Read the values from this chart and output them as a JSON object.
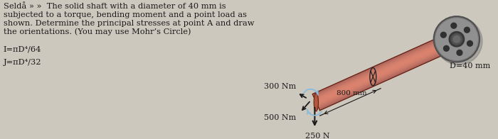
{
  "bg_color": "#cdc8be",
  "text_color": "#1a1a1a",
  "title_line": "Seldå » »  The solid shaft with a diameter of 40 mm is",
  "line2": "subjected to a torque, bending moment and a point load as",
  "line3": "shown. Determine the principal stresses at point A and draw",
  "line4": "the orientations. (You may use Mohr’s Circle)",
  "formula1": "I=πD⁴/64",
  "formula2": "J=πD⁴/32",
  "label_800": "800 mm",
  "label_300": "300 Nm",
  "label_500": "500 Nm",
  "label_250": "250 N",
  "label_D": "D=40 mm",
  "shaft_r": "#c8705a",
  "shaft_mid": "#e09070",
  "shaft_dark": "#a04030",
  "shaft_edge": "#6a2010",
  "wall_gray": "#808080",
  "wall_dark": "#484848",
  "wall_light": "#aaaaaa",
  "arrow_color": "#1a1a1a",
  "moment_color": "#88bbdd"
}
